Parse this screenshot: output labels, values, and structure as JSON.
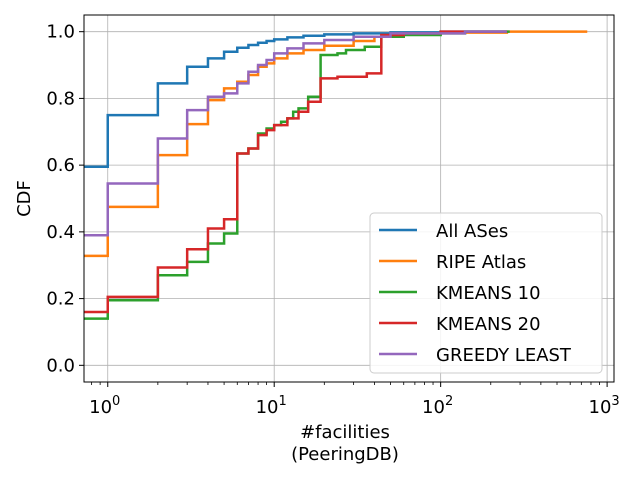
{
  "chart_data": {
    "type": "line",
    "step": true,
    "x_scale": "log",
    "xlabel": "#facilities\n(PeeringDB)",
    "ylabel": "CDF",
    "xlim": [
      0.72,
      1100
    ],
    "ylim": [
      -0.05,
      1.05
    ],
    "xticks": [
      1,
      10,
      100,
      1000
    ],
    "xtick_labels": [
      [
        "10",
        "0"
      ],
      [
        "10",
        "1"
      ],
      [
        "10",
        "2"
      ],
      [
        "10",
        "3"
      ]
    ],
    "yticks": [
      0.0,
      0.2,
      0.4,
      0.6,
      0.8,
      1.0
    ],
    "ytick_labels": [
      "0.0",
      "0.2",
      "0.4",
      "0.6",
      "0.8",
      "1.0"
    ],
    "grid": true,
    "legend_position": "lower-right",
    "series": [
      {
        "name": "All ASes",
        "color": "#1f77b4",
        "points": [
          [
            0.72,
            0.595
          ],
          [
            1,
            0.595
          ],
          [
            1,
            0.75
          ],
          [
            2,
            0.75
          ],
          [
            2,
            0.845
          ],
          [
            3,
            0.845
          ],
          [
            3,
            0.895
          ],
          [
            4,
            0.895
          ],
          [
            4,
            0.92
          ],
          [
            5,
            0.92
          ],
          [
            5,
            0.94
          ],
          [
            6,
            0.94
          ],
          [
            6,
            0.952
          ],
          [
            7,
            0.952
          ],
          [
            7,
            0.96
          ],
          [
            8,
            0.96
          ],
          [
            8,
            0.967
          ],
          [
            9,
            0.967
          ],
          [
            9,
            0.972
          ],
          [
            10,
            0.972
          ],
          [
            10,
            0.977
          ],
          [
            12,
            0.977
          ],
          [
            12,
            0.983
          ],
          [
            15,
            0.983
          ],
          [
            15,
            0.988
          ],
          [
            20,
            0.988
          ],
          [
            20,
            0.992
          ],
          [
            30,
            0.992
          ],
          [
            30,
            0.995
          ],
          [
            50,
            0.995
          ],
          [
            50,
            0.998
          ],
          [
            100,
            0.998
          ],
          [
            100,
            1.0
          ],
          [
            250,
            1.0
          ]
        ]
      },
      {
        "name": "RIPE Atlas",
        "color": "#ff7f0e",
        "points": [
          [
            0.72,
            0.328
          ],
          [
            1,
            0.328
          ],
          [
            1,
            0.475
          ],
          [
            2,
            0.475
          ],
          [
            2,
            0.63
          ],
          [
            3,
            0.63
          ],
          [
            3,
            0.723
          ],
          [
            4,
            0.723
          ],
          [
            4,
            0.795
          ],
          [
            5,
            0.795
          ],
          [
            5,
            0.83
          ],
          [
            6,
            0.83
          ],
          [
            6,
            0.85
          ],
          [
            7,
            0.85
          ],
          [
            7,
            0.87
          ],
          [
            8,
            0.87
          ],
          [
            8,
            0.895
          ],
          [
            9,
            0.895
          ],
          [
            9,
            0.905
          ],
          [
            10,
            0.905
          ],
          [
            10,
            0.92
          ],
          [
            12,
            0.92
          ],
          [
            12,
            0.935
          ],
          [
            15,
            0.935
          ],
          [
            15,
            0.945
          ],
          [
            20,
            0.945
          ],
          [
            20,
            0.958
          ],
          [
            30,
            0.958
          ],
          [
            30,
            0.972
          ],
          [
            40,
            0.972
          ],
          [
            40,
            0.985
          ],
          [
            60,
            0.985
          ],
          [
            60,
            0.993
          ],
          [
            100,
            0.993
          ],
          [
            100,
            0.997
          ],
          [
            250,
            0.997
          ],
          [
            250,
            1.0
          ],
          [
            760,
            1.0
          ]
        ]
      },
      {
        "name": "KMEANS 10",
        "color": "#2ca02c",
        "points": [
          [
            0.72,
            0.14
          ],
          [
            1,
            0.14
          ],
          [
            1,
            0.195
          ],
          [
            2,
            0.195
          ],
          [
            2,
            0.27
          ],
          [
            3,
            0.27
          ],
          [
            3,
            0.31
          ],
          [
            4,
            0.31
          ],
          [
            4,
            0.365
          ],
          [
            5,
            0.365
          ],
          [
            5,
            0.395
          ],
          [
            6,
            0.395
          ],
          [
            6,
            0.635
          ],
          [
            7,
            0.635
          ],
          [
            7,
            0.65
          ],
          [
            8,
            0.65
          ],
          [
            8,
            0.695
          ],
          [
            9,
            0.695
          ],
          [
            9,
            0.71
          ],
          [
            10,
            0.71
          ],
          [
            10,
            0.72
          ],
          [
            11,
            0.72
          ],
          [
            11,
            0.73
          ],
          [
            12,
            0.73
          ],
          [
            12,
            0.74
          ],
          [
            13,
            0.74
          ],
          [
            13,
            0.76
          ],
          [
            14,
            0.76
          ],
          [
            14,
            0.77
          ],
          [
            16,
            0.77
          ],
          [
            16,
            0.805
          ],
          [
            19,
            0.805
          ],
          [
            19,
            0.93
          ],
          [
            24,
            0.93
          ],
          [
            24,
            0.935
          ],
          [
            27,
            0.935
          ],
          [
            27,
            0.945
          ],
          [
            35,
            0.945
          ],
          [
            35,
            0.955
          ],
          [
            44,
            0.955
          ],
          [
            44,
            0.985
          ],
          [
            60,
            0.985
          ],
          [
            60,
            0.99
          ],
          [
            100,
            0.99
          ],
          [
            100,
            0.995
          ],
          [
            140,
            0.995
          ],
          [
            140,
            1.0
          ],
          [
            260,
            1.0
          ]
        ]
      },
      {
        "name": "KMEANS 20",
        "color": "#d62728",
        "points": [
          [
            0.72,
            0.16
          ],
          [
            1,
            0.16
          ],
          [
            1,
            0.205
          ],
          [
            2,
            0.205
          ],
          [
            2,
            0.293
          ],
          [
            3,
            0.293
          ],
          [
            3,
            0.348
          ],
          [
            4,
            0.348
          ],
          [
            4,
            0.41
          ],
          [
            5,
            0.41
          ],
          [
            5,
            0.438
          ],
          [
            6,
            0.438
          ],
          [
            6,
            0.635
          ],
          [
            7,
            0.635
          ],
          [
            7,
            0.65
          ],
          [
            8,
            0.65
          ],
          [
            8,
            0.69
          ],
          [
            9,
            0.69
          ],
          [
            9,
            0.705
          ],
          [
            10,
            0.705
          ],
          [
            10,
            0.72
          ],
          [
            12,
            0.72
          ],
          [
            12,
            0.74
          ],
          [
            14,
            0.74
          ],
          [
            14,
            0.76
          ],
          [
            16,
            0.76
          ],
          [
            16,
            0.79
          ],
          [
            19,
            0.79
          ],
          [
            19,
            0.86
          ],
          [
            24,
            0.86
          ],
          [
            24,
            0.865
          ],
          [
            36,
            0.865
          ],
          [
            36,
            0.875
          ],
          [
            44,
            0.875
          ],
          [
            44,
            0.99
          ],
          [
            60,
            0.99
          ],
          [
            60,
            0.995
          ],
          [
            100,
            0.995
          ],
          [
            100,
            1.0
          ],
          [
            250,
            1.0
          ]
        ]
      },
      {
        "name": "GREEDY LEAST",
        "color": "#9467bd",
        "points": [
          [
            0.72,
            0.39
          ],
          [
            1,
            0.39
          ],
          [
            1,
            0.545
          ],
          [
            2,
            0.545
          ],
          [
            2,
            0.68
          ],
          [
            3,
            0.68
          ],
          [
            3,
            0.765
          ],
          [
            4,
            0.765
          ],
          [
            4,
            0.805
          ],
          [
            5,
            0.805
          ],
          [
            5,
            0.815
          ],
          [
            6,
            0.815
          ],
          [
            6,
            0.845
          ],
          [
            7,
            0.845
          ],
          [
            7,
            0.88
          ],
          [
            8,
            0.88
          ],
          [
            8,
            0.9
          ],
          [
            9,
            0.9
          ],
          [
            9,
            0.915
          ],
          [
            10,
            0.915
          ],
          [
            10,
            0.935
          ],
          [
            12,
            0.935
          ],
          [
            12,
            0.95
          ],
          [
            15,
            0.95
          ],
          [
            15,
            0.965
          ],
          [
            20,
            0.965
          ],
          [
            20,
            0.975
          ],
          [
            30,
            0.975
          ],
          [
            30,
            0.985
          ],
          [
            50,
            0.985
          ],
          [
            50,
            0.995
          ],
          [
            140,
            0.995
          ],
          [
            140,
            1.0
          ],
          [
            250,
            1.0
          ]
        ]
      }
    ]
  }
}
